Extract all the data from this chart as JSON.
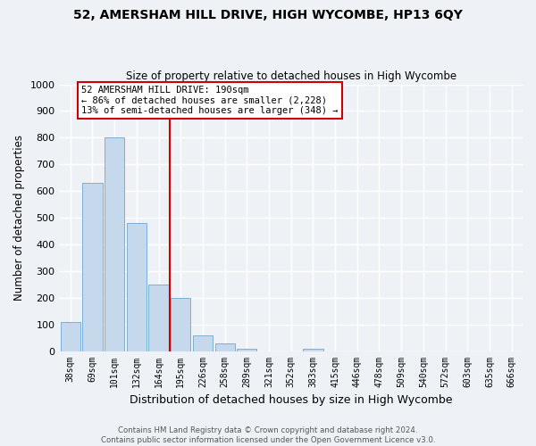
{
  "title": "52, AMERSHAM HILL DRIVE, HIGH WYCOMBE, HP13 6QY",
  "subtitle": "Size of property relative to detached houses in High Wycombe",
  "xlabel": "Distribution of detached houses by size in High Wycombe",
  "ylabel": "Number of detached properties",
  "bar_labels": [
    "38sqm",
    "69sqm",
    "101sqm",
    "132sqm",
    "164sqm",
    "195sqm",
    "226sqm",
    "258sqm",
    "289sqm",
    "321sqm",
    "352sqm",
    "383sqm",
    "415sqm",
    "446sqm",
    "478sqm",
    "509sqm",
    "540sqm",
    "572sqm",
    "603sqm",
    "635sqm",
    "666sqm"
  ],
  "bar_values": [
    110,
    630,
    800,
    480,
    250,
    200,
    60,
    30,
    10,
    0,
    0,
    10,
    0,
    0,
    0,
    0,
    0,
    0,
    0,
    0,
    0
  ],
  "bar_color": "#c6d9ec",
  "bar_edge_color": "#7bafd4",
  "vline_color": "#cc0000",
  "ylim": [
    0,
    1000
  ],
  "yticks": [
    0,
    100,
    200,
    300,
    400,
    500,
    600,
    700,
    800,
    900,
    1000
  ],
  "annotation_title": "52 AMERSHAM HILL DRIVE: 190sqm",
  "annotation_line1": "← 86% of detached houses are smaller (2,228)",
  "annotation_line2": "13% of semi-detached houses are larger (348) →",
  "annotation_box_color": "white",
  "annotation_box_edge": "#cc0000",
  "footer_line1": "Contains HM Land Registry data © Crown copyright and database right 2024.",
  "footer_line2": "Contains public sector information licensed under the Open Government Licence v3.0.",
  "background_color": "#eef2f7",
  "grid_color": "white",
  "vline_x_bar_index": 5
}
